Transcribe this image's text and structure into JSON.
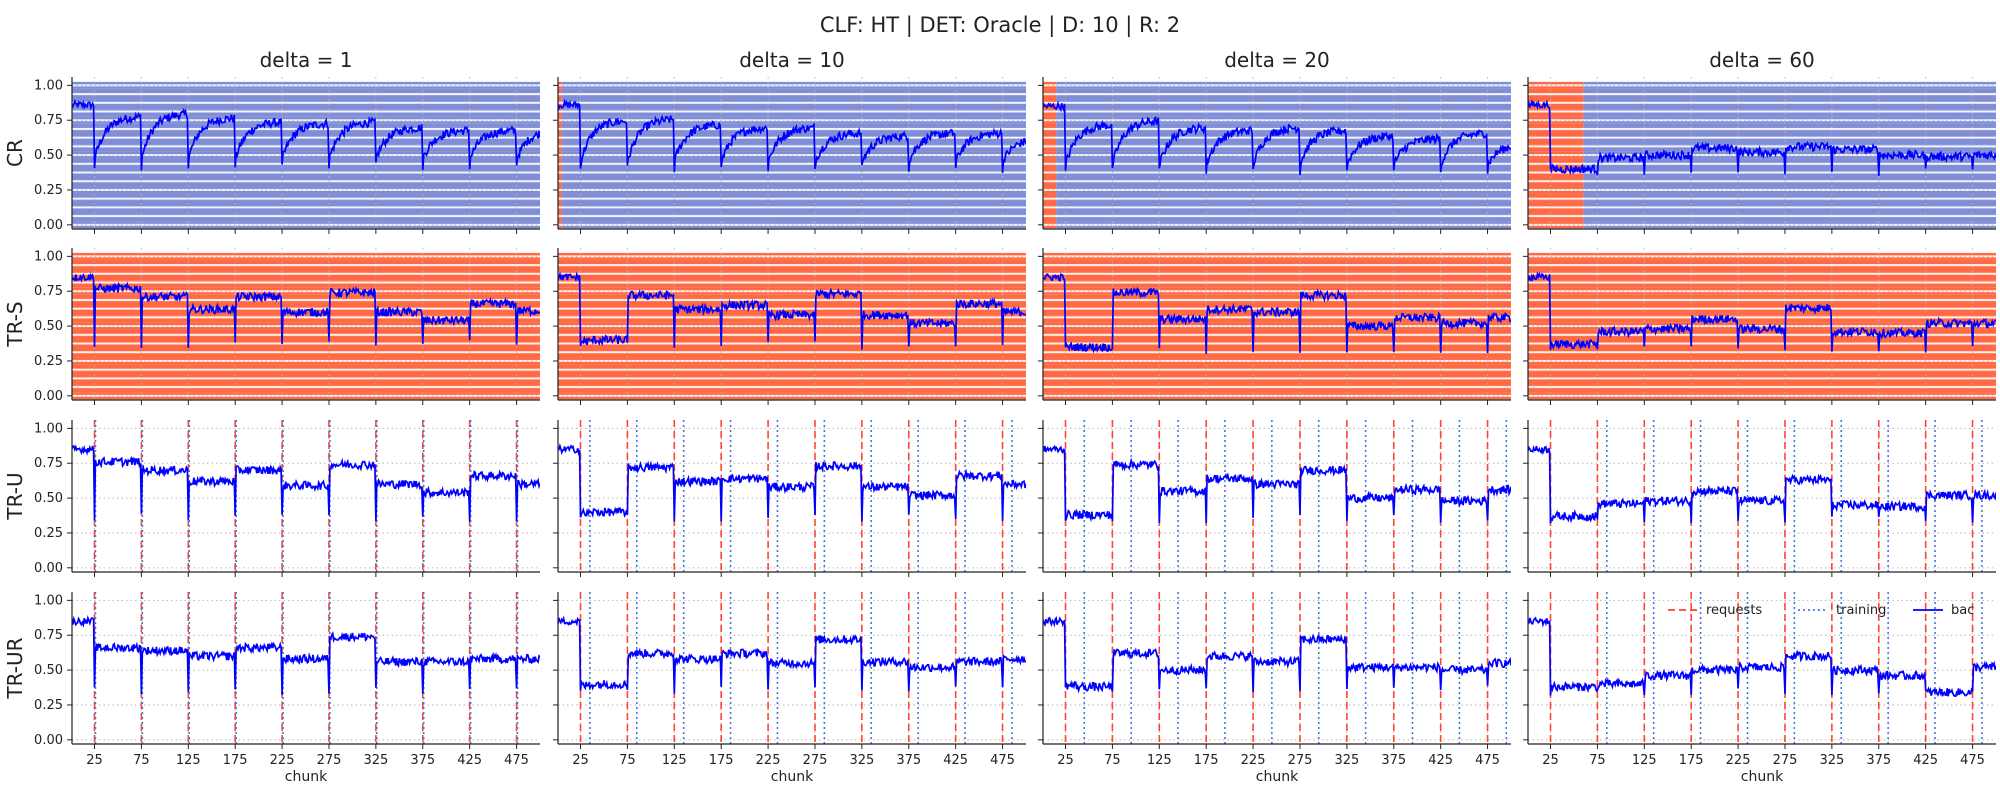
{
  "figure": {
    "title": "CLF: HT | DET: Oracle | D: 10 | R: 2"
  },
  "legend": {
    "requests": "requests",
    "training": "training",
    "bac": "bac"
  },
  "colors": {
    "bac": "#0000ff",
    "requests": "#ff4433",
    "training": "#4477dd",
    "shade": "#ff6a45",
    "grid": "#b8b8b8"
  },
  "chart_data": {
    "type": "line",
    "xlabel": "chunk",
    "columns": [
      "delta = 1",
      "delta = 10",
      "delta = 20",
      "delta = 60"
    ],
    "rows": [
      "CR",
      "TR-S",
      "TR-U",
      "TR-UR"
    ],
    "x_range": [
      1,
      500
    ],
    "x_ticks": [
      25,
      75,
      125,
      175,
      225,
      275,
      325,
      375,
      425,
      475
    ],
    "y_range": [
      -0.03,
      1.06
    ],
    "y_ticks": [
      0.0,
      0.25,
      0.5,
      0.75,
      1.0
    ],
    "y_tick_labels": [
      "0.00",
      "0.25",
      "0.50",
      "0.75",
      "1.00"
    ],
    "drift_chunks": [
      25,
      75,
      125,
      175,
      225,
      275,
      325,
      375,
      425,
      475
    ],
    "series_names": [
      "requests",
      "training",
      "bac"
    ],
    "panels": [
      {
        "row": "CR",
        "col": "delta = 1",
        "shade": "striped_cr",
        "pre": 0.86,
        "levels": [
          0.78,
          0.8,
          0.77,
          0.74,
          0.73,
          0.74,
          0.7,
          0.68,
          0.68,
          0.68
        ],
        "drop": 0.42,
        "recovery": "gradual"
      },
      {
        "row": "CR",
        "col": "delta = 10",
        "shade": "striped_cr_first_block",
        "first_block_end": 5,
        "pre": 0.86,
        "levels": [
          0.75,
          0.76,
          0.72,
          0.7,
          0.7,
          0.66,
          0.64,
          0.66,
          0.66,
          0.62
        ],
        "drop": 0.4,
        "recovery": "gradual"
      },
      {
        "row": "CR",
        "col": "delta = 20",
        "shade": "striped_cr_first_block",
        "first_block_end": 15,
        "pre": 0.85,
        "levels": [
          0.72,
          0.75,
          0.7,
          0.68,
          0.7,
          0.68,
          0.64,
          0.62,
          0.66,
          0.58
        ],
        "drop": 0.38,
        "recovery": "gradual"
      },
      {
        "row": "CR",
        "col": "delta = 60",
        "shade": "striped_cr_first_block",
        "first_block_end": 60,
        "pre": 0.86,
        "levels": [
          0.4,
          0.48,
          0.5,
          0.55,
          0.52,
          0.56,
          0.54,
          0.5,
          0.49,
          0.5
        ],
        "drop": 0.38,
        "recovery": "flat"
      },
      {
        "row": "TR-S",
        "col": "delta = 1",
        "shade": "striped_trs",
        "pre": 0.85,
        "levels": [
          0.77,
          0.71,
          0.62,
          0.71,
          0.6,
          0.74,
          0.6,
          0.54,
          0.66,
          0.61
        ],
        "drop": 0.37,
        "recovery": "flat"
      },
      {
        "row": "TR-S",
        "col": "delta = 10",
        "shade": "striped_trs",
        "pre": 0.85,
        "levels": [
          0.4,
          0.72,
          0.62,
          0.65,
          0.58,
          0.73,
          0.58,
          0.52,
          0.66,
          0.6
        ],
        "drop": 0.36,
        "recovery": "step"
      },
      {
        "row": "TR-S",
        "col": "delta = 20",
        "shade": "striped_trs",
        "pre": 0.85,
        "levels": [
          0.35,
          0.74,
          0.55,
          0.62,
          0.6,
          0.72,
          0.5,
          0.56,
          0.52,
          0.56
        ],
        "drop": 0.32,
        "recovery": "step"
      },
      {
        "row": "TR-S",
        "col": "delta = 60",
        "shade": "striped_trs",
        "pre": 0.85,
        "levels": [
          0.37,
          0.46,
          0.48,
          0.55,
          0.48,
          0.63,
          0.46,
          0.45,
          0.52,
          0.52
        ],
        "drop": 0.34,
        "recovery": "flat"
      },
      {
        "row": "TR-U",
        "col": "delta = 1",
        "shade": "none",
        "pre": 0.85,
        "levels": [
          0.76,
          0.7,
          0.62,
          0.7,
          0.59,
          0.74,
          0.6,
          0.54,
          0.66,
          0.6
        ],
        "drop": 0.36,
        "recovery": "flat",
        "train_offset": 1
      },
      {
        "row": "TR-U",
        "col": "delta = 10",
        "shade": "none",
        "pre": 0.85,
        "levels": [
          0.4,
          0.72,
          0.62,
          0.64,
          0.58,
          0.73,
          0.58,
          0.52,
          0.66,
          0.6
        ],
        "drop": 0.36,
        "recovery": "step",
        "train_offset": 10
      },
      {
        "row": "TR-U",
        "col": "delta = 20",
        "shade": "none",
        "pre": 0.85,
        "levels": [
          0.38,
          0.74,
          0.55,
          0.64,
          0.6,
          0.7,
          0.5,
          0.56,
          0.48,
          0.56
        ],
        "drop": 0.35,
        "recovery": "step",
        "train_offset": 20
      },
      {
        "row": "TR-U",
        "col": "delta = 60",
        "shade": "none",
        "pre": 0.85,
        "levels": [
          0.37,
          0.46,
          0.48,
          0.55,
          0.48,
          0.63,
          0.45,
          0.44,
          0.52,
          0.52
        ],
        "drop": 0.34,
        "recovery": "flat",
        "train_offset": 60
      },
      {
        "row": "TR-UR",
        "col": "delta = 1",
        "shade": "none",
        "pre": 0.85,
        "levels": [
          0.66,
          0.64,
          0.6,
          0.66,
          0.58,
          0.74,
          0.56,
          0.56,
          0.58,
          0.58
        ],
        "drop": 0.35,
        "recovery": "flat",
        "train_offset": 1
      },
      {
        "row": "TR-UR",
        "col": "delta = 10",
        "shade": "none",
        "pre": 0.85,
        "levels": [
          0.4,
          0.62,
          0.58,
          0.62,
          0.55,
          0.72,
          0.56,
          0.52,
          0.56,
          0.58
        ],
        "drop": 0.36,
        "recovery": "step",
        "train_offset": 10
      },
      {
        "row": "TR-UR",
        "col": "delta = 20",
        "shade": "none",
        "pre": 0.85,
        "levels": [
          0.38,
          0.62,
          0.5,
          0.6,
          0.56,
          0.72,
          0.52,
          0.52,
          0.5,
          0.55
        ],
        "drop": 0.36,
        "recovery": "step",
        "train_offset": 20
      },
      {
        "row": "TR-UR",
        "col": "delta = 60",
        "shade": "none",
        "pre": 0.85,
        "levels": [
          0.38,
          0.4,
          0.46,
          0.5,
          0.52,
          0.6,
          0.5,
          0.46,
          0.34,
          0.52
        ],
        "drop": 0.34,
        "recovery": "flat",
        "train_offset": 60,
        "legend": "top-right"
      }
    ]
  }
}
